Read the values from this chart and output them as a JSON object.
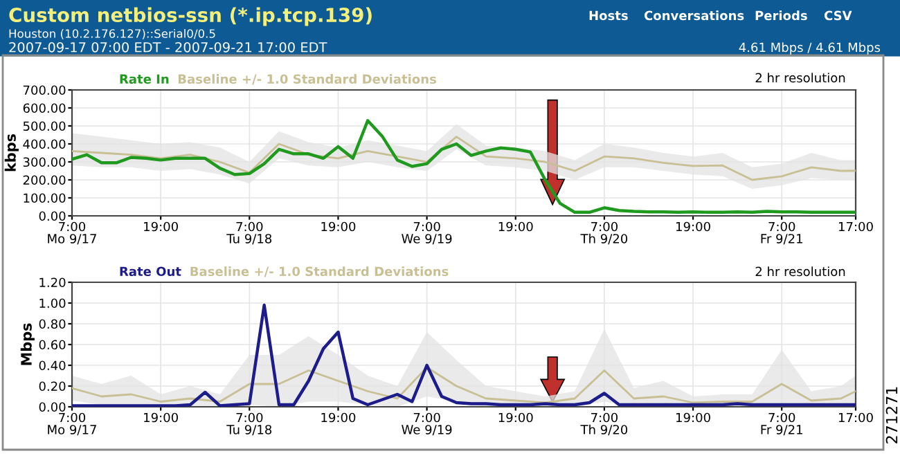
{
  "chart_data": [
    {
      "type": "line",
      "title": "Custom netbios-ssn (*.ip.tcp.139)",
      "subtitle": "Houston (10.2.176.127)::Serial0/0.5",
      "ylabel": "kbps",
      "annotations": [
        "2007-09-17 07:00 EDT - 2007-09-21 17:00 EDT",
        "Hosts",
        "Conversations",
        "Periods",
        "CSV",
        "4.61 Mbps / 4.61 Mbps",
        "2 hr resolution",
        "271271"
      ],
      "x": [
        "2007-09-17T07:00",
        "2007-09-17T09:00",
        "2007-09-17T11:00",
        "2007-09-17T13:00",
        "2007-09-17T15:00",
        "2007-09-17T17:00",
        "2007-09-17T19:00",
        "2007-09-17T21:00",
        "2007-09-17T23:00",
        "2007-09-18T01:00",
        "2007-09-18T03:00",
        "2007-09-18T05:00",
        "2007-09-18T07:00",
        "2007-09-18T09:00",
        "2007-09-18T11:00",
        "2007-09-18T13:00",
        "2007-09-18T15:00",
        "2007-09-18T17:00",
        "2007-09-18T19:00",
        "2007-09-18T21:00",
        "2007-09-18T23:00",
        "2007-09-19T01:00",
        "2007-09-19T03:00",
        "2007-09-19T05:00",
        "2007-09-19T07:00",
        "2007-09-19T09:00",
        "2007-09-19T11:00",
        "2007-09-19T13:00",
        "2007-09-19T15:00",
        "2007-09-19T17:00",
        "2007-09-19T19:00",
        "2007-09-19T21:00",
        "2007-09-19T23:00",
        "2007-09-20T01:00",
        "2007-09-20T03:00",
        "2007-09-20T05:00",
        "2007-09-20T07:00",
        "2007-09-20T09:00",
        "2007-09-20T11:00",
        "2007-09-20T13:00",
        "2007-09-20T15:00",
        "2007-09-20T17:00",
        "2007-09-20T19:00",
        "2007-09-20T21:00",
        "2007-09-20T23:00",
        "2007-09-21T01:00",
        "2007-09-21T03:00",
        "2007-09-21T05:00",
        "2007-09-21T07:00",
        "2007-09-21T09:00",
        "2007-09-21T11:00",
        "2007-09-21T13:00",
        "2007-09-21T15:00",
        "2007-09-21T17:00"
      ],
      "xlim": [
        "2007-09-17T07:00",
        "2007-09-21T17:00"
      ],
      "xticks": [
        {
          "value": "2007-09-17T07:00",
          "label": "7:00\nMo 9/17"
        },
        {
          "value": "2007-09-17T19:00",
          "label": "19:00"
        },
        {
          "value": "2007-09-18T07:00",
          "label": "7:00\nTu 9/18"
        },
        {
          "value": "2007-09-18T19:00",
          "label": "19:00"
        },
        {
          "value": "2007-09-19T07:00",
          "label": "7:00\nWe 9/19"
        },
        {
          "value": "2007-09-19T19:00",
          "label": "19:00"
        },
        {
          "value": "2007-09-20T07:00",
          "label": "7:00\nTh 9/20"
        },
        {
          "value": "2007-09-20T19:00",
          "label": "19:00"
        },
        {
          "value": "2007-09-21T07:00",
          "label": "7:00\nFr 9/21"
        },
        {
          "value": "2007-09-21T17:00",
          "label": "17:00"
        }
      ],
      "ylim": [
        0,
        700
      ],
      "yticks": [
        {
          "value": 0,
          "label": "0.00"
        },
        {
          "value": 100,
          "label": "100.00"
        },
        {
          "value": 200,
          "label": "200.00"
        },
        {
          "value": 300,
          "label": "300.00"
        },
        {
          "value": 400,
          "label": "400.00"
        },
        {
          "value": 500,
          "label": "500.00"
        },
        {
          "value": 600,
          "label": "600.00"
        },
        {
          "value": 700,
          "label": "700.00"
        }
      ],
      "grid": true,
      "legend": "top left",
      "series": [
        {
          "name": "Baseline +/- 1.0 Standard Deviations",
          "color": "#c8bf94",
          "x": [
            "2007-09-17T07:00",
            "2007-09-17T11:00",
            "2007-09-17T15:00",
            "2007-09-17T19:00",
            "2007-09-17T23:00",
            "2007-09-18T03:00",
            "2007-09-18T07:00",
            "2007-09-18T11:00",
            "2007-09-18T15:00",
            "2007-09-18T19:00",
            "2007-09-18T23:00",
            "2007-09-19T03:00",
            "2007-09-19T07:00",
            "2007-09-19T11:00",
            "2007-09-19T15:00",
            "2007-09-19T19:00",
            "2007-09-19T23:00",
            "2007-09-20T03:00",
            "2007-09-20T07:00",
            "2007-09-20T11:00",
            "2007-09-20T15:00",
            "2007-09-20T19:00",
            "2007-09-20T23:00",
            "2007-09-21T03:00",
            "2007-09-21T07:00",
            "2007-09-21T11:00",
            "2007-09-21T15:00",
            "2007-09-21T17:00"
          ],
          "values": [
            360,
            350,
            340,
            320,
            340,
            300,
            240,
            400,
            340,
            320,
            360,
            330,
            300,
            440,
            330,
            320,
            300,
            250,
            330,
            320,
            295,
            277,
            280,
            200,
            220,
            270,
            250,
            251
          ],
          "upper": [
            460,
            440,
            420,
            400,
            410,
            380,
            300,
            470,
            410,
            380,
            420,
            390,
            360,
            510,
            390,
            380,
            360,
            310,
            400,
            380,
            350,
            330,
            350,
            270,
            290,
            350,
            310,
            310
          ],
          "lower": [
            280,
            270,
            270,
            250,
            260,
            230,
            180,
            320,
            280,
            270,
            300,
            270,
            250,
            370,
            280,
            270,
            250,
            200,
            270,
            270,
            250,
            230,
            220,
            150,
            170,
            210,
            200,
            200
          ]
        },
        {
          "name": "Rate In",
          "color": "#1f9a1f",
          "values": [
            315,
            340,
            295,
            295,
            325,
            320,
            310,
            320,
            320,
            320,
            265,
            230,
            235,
            290,
            370,
            345,
            345,
            320,
            385,
            320,
            530,
            440,
            310,
            275,
            290,
            370,
            400,
            336,
            360,
            378,
            370,
            355,
            200,
            70,
            20,
            20,
            45,
            30,
            25,
            22,
            22,
            20,
            22,
            20,
            20,
            22,
            20,
            25,
            22,
            22,
            20,
            20,
            20,
            20
          ]
        }
      ]
    },
    {
      "type": "line",
      "ylabel": "Mbps",
      "annotations": [
        "2 hr resolution"
      ],
      "x": [
        "2007-09-17T07:00",
        "2007-09-17T09:00",
        "2007-09-17T11:00",
        "2007-09-17T13:00",
        "2007-09-17T15:00",
        "2007-09-17T17:00",
        "2007-09-17T19:00",
        "2007-09-17T21:00",
        "2007-09-17T23:00",
        "2007-09-18T01:00",
        "2007-09-18T03:00",
        "2007-09-18T05:00",
        "2007-09-18T07:00",
        "2007-09-18T09:00",
        "2007-09-18T11:00",
        "2007-09-18T13:00",
        "2007-09-18T15:00",
        "2007-09-18T17:00",
        "2007-09-18T19:00",
        "2007-09-18T21:00",
        "2007-09-18T23:00",
        "2007-09-19T01:00",
        "2007-09-19T03:00",
        "2007-09-19T05:00",
        "2007-09-19T07:00",
        "2007-09-19T09:00",
        "2007-09-19T11:00",
        "2007-09-19T13:00",
        "2007-09-19T15:00",
        "2007-09-19T17:00",
        "2007-09-19T19:00",
        "2007-09-19T21:00",
        "2007-09-19T23:00",
        "2007-09-20T01:00",
        "2007-09-20T03:00",
        "2007-09-20T05:00",
        "2007-09-20T07:00",
        "2007-09-20T09:00",
        "2007-09-20T11:00",
        "2007-09-20T13:00",
        "2007-09-20T15:00",
        "2007-09-20T17:00",
        "2007-09-20T19:00",
        "2007-09-20T21:00",
        "2007-09-20T23:00",
        "2007-09-21T01:00",
        "2007-09-21T03:00",
        "2007-09-21T05:00",
        "2007-09-21T07:00",
        "2007-09-21T09:00",
        "2007-09-21T11:00",
        "2007-09-21T13:00",
        "2007-09-21T15:00",
        "2007-09-21T17:00"
      ],
      "xlim": [
        "2007-09-17T07:00",
        "2007-09-21T17:00"
      ],
      "xticks": [
        {
          "value": "2007-09-17T07:00",
          "label": "7:00\nMo 9/17"
        },
        {
          "value": "2007-09-17T19:00",
          "label": "19:00"
        },
        {
          "value": "2007-09-18T07:00",
          "label": "7:00\nTu 9/18"
        },
        {
          "value": "2007-09-18T19:00",
          "label": "19:00"
        },
        {
          "value": "2007-09-19T07:00",
          "label": "7:00\nWe 9/19"
        },
        {
          "value": "2007-09-19T19:00",
          "label": "19:00"
        },
        {
          "value": "2007-09-20T07:00",
          "label": "7:00\nTh 9/20"
        },
        {
          "value": "2007-09-20T19:00",
          "label": "19:00"
        },
        {
          "value": "2007-09-21T07:00",
          "label": "7:00\nFr 9/21"
        },
        {
          "value": "2007-09-21T17:00",
          "label": "17:00"
        }
      ],
      "ylim": [
        0,
        1.2
      ],
      "yticks": [
        {
          "value": 0,
          "label": "0.00"
        },
        {
          "value": 0.2,
          "label": "0.20"
        },
        {
          "value": 0.4,
          "label": "0.40"
        },
        {
          "value": 0.6,
          "label": "0.60"
        },
        {
          "value": 0.8,
          "label": "0.80"
        },
        {
          "value": 1,
          "label": "1.00"
        },
        {
          "value": 1.2,
          "label": "1.20"
        }
      ],
      "grid": true,
      "legend": "top left",
      "series": [
        {
          "name": "Baseline +/- 1.0 Standard Deviations",
          "color": "#c8bf94",
          "x": [
            "2007-09-17T07:00",
            "2007-09-17T11:00",
            "2007-09-17T15:00",
            "2007-09-17T19:00",
            "2007-09-17T23:00",
            "2007-09-18T03:00",
            "2007-09-18T07:00",
            "2007-09-18T11:00",
            "2007-09-18T15:00",
            "2007-09-18T19:00",
            "2007-09-18T23:00",
            "2007-09-19T03:00",
            "2007-09-19T07:00",
            "2007-09-19T11:00",
            "2007-09-19T15:00",
            "2007-09-19T19:00",
            "2007-09-19T23:00",
            "2007-09-20T03:00",
            "2007-09-20T07:00",
            "2007-09-20T11:00",
            "2007-09-20T15:00",
            "2007-09-20T19:00",
            "2007-09-20T23:00",
            "2007-09-21T03:00",
            "2007-09-21T07:00",
            "2007-09-21T11:00",
            "2007-09-21T15:00",
            "2007-09-21T17:00"
          ],
          "values": [
            0.18,
            0.1,
            0.12,
            0.05,
            0.08,
            0.05,
            0.22,
            0.22,
            0.35,
            0.25,
            0.15,
            0.08,
            0.38,
            0.2,
            0.08,
            0.06,
            0.04,
            0.08,
            0.35,
            0.08,
            0.1,
            0.04,
            0.05,
            0.05,
            0.22,
            0.06,
            0.08,
            0.15
          ],
          "upper": [
            0.3,
            0.22,
            0.3,
            0.12,
            0.2,
            0.12,
            0.5,
            0.5,
            0.68,
            0.5,
            0.3,
            0.2,
            0.72,
            0.45,
            0.2,
            0.15,
            0.1,
            0.15,
            0.75,
            0.18,
            0.25,
            0.1,
            0.12,
            0.12,
            0.55,
            0.15,
            0.2,
            0.3
          ],
          "lower": [
            0.06,
            0.02,
            0.02,
            0,
            0,
            0,
            0.02,
            0,
            0.05,
            0.05,
            0.02,
            0,
            0.1,
            0.05,
            0,
            0,
            0,
            0,
            0.05,
            0,
            0,
            0,
            0,
            0,
            0.02,
            0,
            0,
            0.02
          ]
        },
        {
          "name": "Rate Out",
          "color": "#1c1c8a",
          "values": [
            0.01,
            0.01,
            0.01,
            0.01,
            0.01,
            0.01,
            0.01,
            0.01,
            0.02,
            0.14,
            0.01,
            0.02,
            0.03,
            0.98,
            0.02,
            0.02,
            0.25,
            0.56,
            0.72,
            0.08,
            0.02,
            0.07,
            0.12,
            0.05,
            0.4,
            0.1,
            0.04,
            0.03,
            0.03,
            0.02,
            0.02,
            0.02,
            0.03,
            0.02,
            0.02,
            0.04,
            0.13,
            0.02,
            0.02,
            0.02,
            0.02,
            0.02,
            0.02,
            0.02,
            0.02,
            0.03,
            0.02,
            0.02,
            0.02,
            0.02,
            0.02,
            0.02,
            0.02,
            0.02
          ]
        }
      ]
    }
  ]
}
